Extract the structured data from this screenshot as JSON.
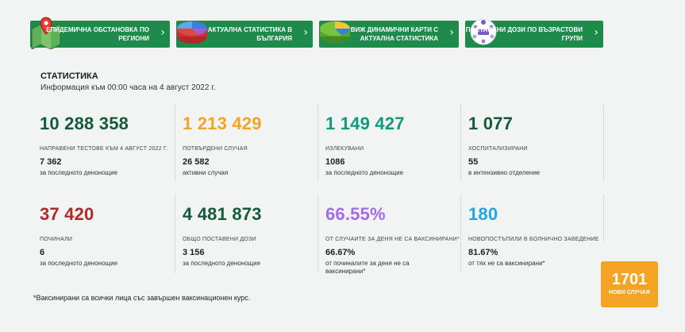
{
  "nav": [
    {
      "label": "ЕПИДЕМИЧНА ОБСТАНОВКА ПО РЕГИОНИ",
      "icon": "map-pin-icon"
    },
    {
      "label": "АКТУАЛНА СТАТИСТИКА В БЪЛГАРИЯ",
      "icon": "pie-chart-icon"
    },
    {
      "label": "ВИЖ ДИНАМИЧНИ КАРТИ С АКТУАЛНА СТАТИСТИКА",
      "icon": "pie-map-icon"
    },
    {
      "label": "ПОСТАВЕНИ ДОЗИ ПО ВЪЗРАСТОВИ ГРУПИ",
      "icon": "iva-logo-icon"
    }
  ],
  "stats": {
    "title": "СТАТИСТИКА",
    "info": "Информация към 00:00 часа на 4 август 2022 г.",
    "cells": [
      {
        "big": "10 288 358",
        "caption": "НАПРАВЕНИ ТЕСТОВЕ КЪМ 4 АВГУСТ 2022 Г.",
        "value": "7 362",
        "sub": "за последното денонощие",
        "color": "green"
      },
      {
        "big": "1 213 429",
        "caption": "ПОТВЪРДЕНИ СЛУЧАЯ",
        "value": "26 582",
        "sub": "активни случая",
        "color": "orange"
      },
      {
        "big": "1 149 427",
        "caption": "ИЗЛЕКУВАНИ",
        "value": "1086",
        "sub": "за последното денонощие",
        "color": "teal"
      },
      {
        "big": "1 077",
        "caption": "ХОСПИТАЛИЗИРАНИ",
        "value": "55",
        "sub": "в интензивно отделение",
        "color": "green"
      },
      {
        "big": "37 420",
        "caption": "ПОЧИНАЛИ",
        "value": "6",
        "sub": "за последното денонощие",
        "color": "red"
      },
      {
        "big": "4 481 873",
        "caption": "ОБЩО ПОСТАВЕНИ ДОЗИ",
        "value": "3 156",
        "sub": "за последното денонощие",
        "color": "green"
      },
      {
        "big": "66.55%",
        "caption": "ОТ СЛУЧАИТЕ ЗА ДЕНЯ НЕ СА ВАКСИНИРАНИ*",
        "value": "66.67%",
        "sub": "от починалите за деня не са ваксинирани*",
        "color": "purple"
      },
      {
        "big": "180",
        "caption": "НОВОПОСТЪПИЛИ В БОЛНИЧНО ЗАВЕДЕНИЕ",
        "value": "81.67%",
        "sub": "от тях не са ваксинирани*",
        "color": "blue"
      }
    ]
  },
  "footnote": "*Ваксинирани са всички лица със завършен ваксинационен курс.",
  "badge": {
    "number": "1701",
    "label": "НОВИ СЛУЧАЯ"
  },
  "colors": {
    "green_button": "#1e8a4c",
    "orange": "#f3a424",
    "background": "#f1f4f2"
  }
}
